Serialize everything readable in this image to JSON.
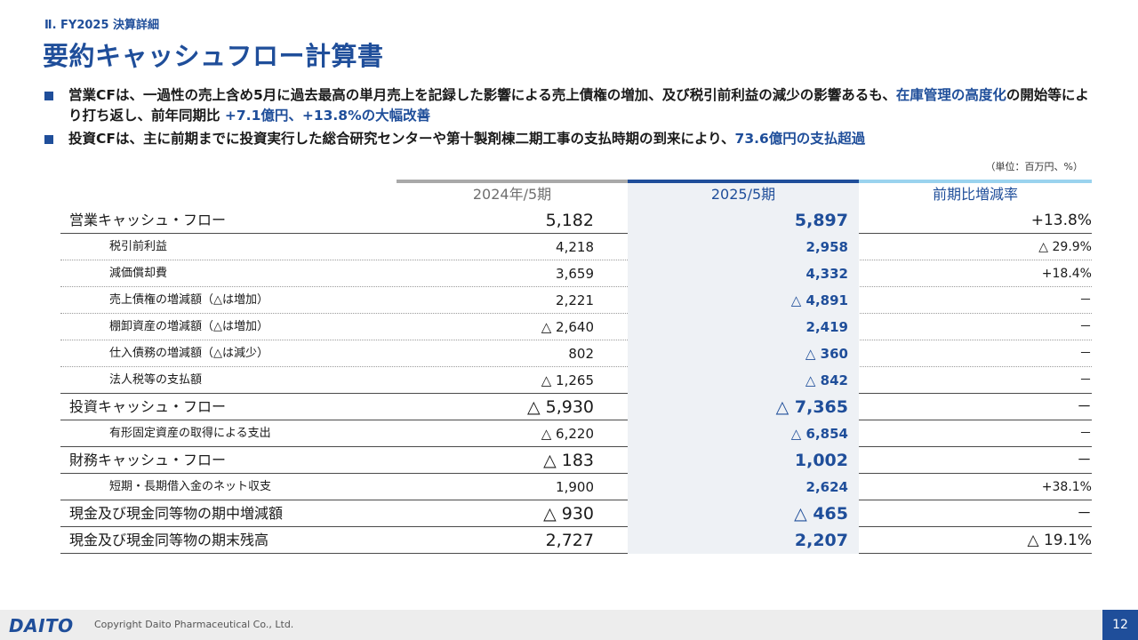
{
  "header": {
    "section": "Ⅱ. FY2025 決算詳細",
    "title": "要約キャッシュフロー計算書"
  },
  "bullets": [
    {
      "text_1": "営業CFは、一過性の売上含め5月に過去最高の単月売上を記録した影響による売上債権の増加、及び税引前利益の減少の影響あるも、",
      "highlight_1": "在庫管理の高度化",
      "text_2": "の開始等により打ち返し、前年同期比 ",
      "highlight_2": "+7.1億円、+13.8%の大幅改善"
    },
    {
      "text_1": "投資CFは、主に前期までに投資実行した総合研究センターや第十製剤棟二期工事の支払時期の到来により、",
      "highlight_1": "73.6億円の支払超過"
    }
  ],
  "unit": "（単位：百万円、%）",
  "table": {
    "headers": {
      "prev": "2024年/5期",
      "curr": "2025/5期",
      "ratio": "前期比増減率"
    },
    "rows": [
      {
        "label": "営業キャッシュ・フロー",
        "prev": "5,182",
        "curr": "5,897",
        "ratio": "+13.8%",
        "type": "major"
      },
      {
        "label": "税引前利益",
        "prev": "4,218",
        "curr": "2,958",
        "ratio": "△ 29.9%",
        "type": "sub"
      },
      {
        "label": "減価償却費",
        "prev": "3,659",
        "curr": "4,332",
        "ratio": "+18.4%",
        "type": "sub"
      },
      {
        "label": "売上債権の増減額（△は増加）",
        "prev": "2,221",
        "curr": "△ 4,891",
        "ratio": "－",
        "type": "sub"
      },
      {
        "label": "棚卸資産の増減額（△は増加）",
        "prev": "△ 2,640",
        "curr": "2,419",
        "ratio": "－",
        "type": "sub"
      },
      {
        "label": "仕入債務の増減額（△は減少）",
        "prev": "802",
        "curr": "△ 360",
        "ratio": "－",
        "type": "sub"
      },
      {
        "label": "法人税等の支払額",
        "prev": "△ 1,265",
        "curr": "△ 842",
        "ratio": "－",
        "type": "sub-end"
      },
      {
        "label": "投資キャッシュ・フロー",
        "prev": "△ 5,930",
        "curr": "△ 7,365",
        "ratio": "－",
        "type": "major"
      },
      {
        "label": "有形固定資産の取得による支出",
        "prev": "△ 6,220",
        "curr": "△ 6,854",
        "ratio": "－",
        "type": "sub-end"
      },
      {
        "label": "財務キャッシュ・フロー",
        "prev": "△ 183",
        "curr": "1,002",
        "ratio": "－",
        "type": "major"
      },
      {
        "label": "短期・長期借入金のネット収支",
        "prev": "1,900",
        "curr": "2,624",
        "ratio": "+38.1%",
        "type": "sub-end"
      },
      {
        "label": "現金及び現金同等物の期中増減額",
        "prev": "△ 930",
        "curr": "△ 465",
        "ratio": "－",
        "type": "major"
      },
      {
        "label": "現金及び現金同等物の期末残高",
        "prev": "2,727",
        "curr": "2,207",
        "ratio": "△ 19.1%",
        "type": "major-last"
      }
    ]
  },
  "footer": {
    "logo": "DAITO",
    "copyright": "Copyright  Daito Pharmaceutical Co., Ltd.",
    "page": "12"
  }
}
